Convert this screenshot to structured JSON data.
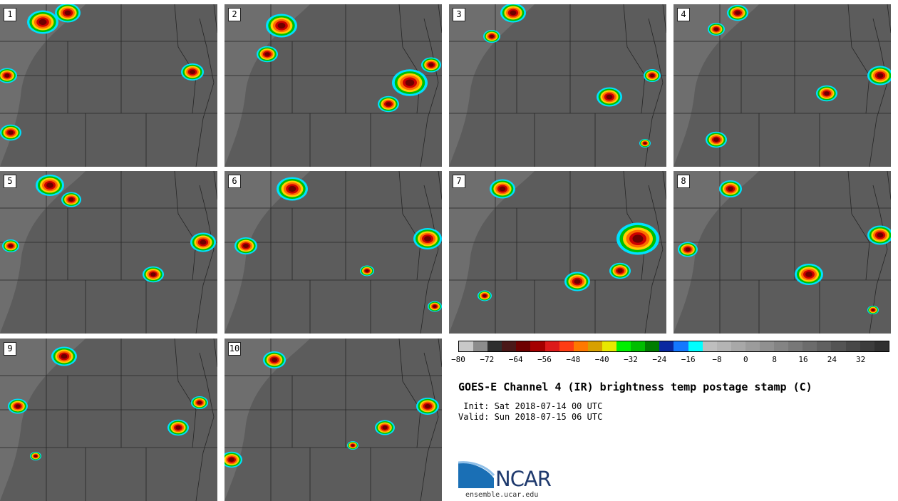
{
  "title": "GOES-E Channel 4 (IR) brightness temp postage stamp (C)",
  "init": " Init: Sat 2018-07-14 00 UTC",
  "valid": "Valid: Sun 2018-07-15 06 UTC",
  "logo": {
    "name": "NCAR",
    "url": "ensemble.ucar.edu"
  },
  "panels": [
    {
      "id": "1"
    },
    {
      "id": "2"
    },
    {
      "id": "3"
    },
    {
      "id": "4"
    },
    {
      "id": "5"
    },
    {
      "id": "6"
    },
    {
      "id": "7"
    },
    {
      "id": "8"
    },
    {
      "id": "9"
    },
    {
      "id": "10"
    }
  ],
  "colorbar": {
    "colors": [
      "#c8c8c8",
      "#8c8c8c",
      "#2e2e2e",
      "#4a1818",
      "#6e0000",
      "#a50000",
      "#dd1a1a",
      "#ff3c14",
      "#ff7800",
      "#d7a000",
      "#e8e800",
      "#00f000",
      "#00be00",
      "#007d00",
      "#0a28a0",
      "#1478ff",
      "#00ffff",
      "#bebebe",
      "#b4b4b4",
      "#a8a8a8",
      "#9c9c9c",
      "#909090",
      "#848484",
      "#787878",
      "#6c6c6c",
      "#606060",
      "#545454",
      "#484848",
      "#3c3c3c",
      "#303030"
    ],
    "tick_labels": [
      "−80",
      "−72",
      "−64",
      "−56",
      "−48",
      "−40",
      "−32",
      "−24",
      "−16",
      "−8",
      "0",
      "8",
      "16",
      "24",
      "32"
    ]
  }
}
